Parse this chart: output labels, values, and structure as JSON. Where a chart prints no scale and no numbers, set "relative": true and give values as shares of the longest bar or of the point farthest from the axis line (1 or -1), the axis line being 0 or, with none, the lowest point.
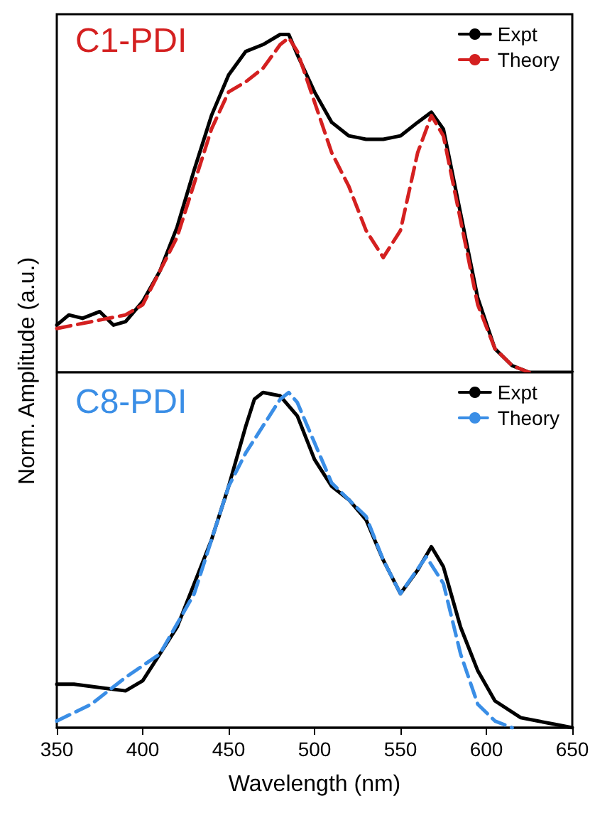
{
  "chart_data": [
    {
      "type": "line",
      "title": "C1-PDI",
      "ylabel": "Norm. Amplitude (a.u.)",
      "relative": true,
      "xlim": [
        350,
        650
      ],
      "xticks": [
        350,
        400,
        450,
        500,
        550,
        600,
        650
      ],
      "tick_labels": false,
      "legend": "top right",
      "grid": false,
      "marker": "none",
      "series": [
        {
          "name": "Expt",
          "color": "#000000",
          "line_style": "solid",
          "x": [
            350,
            357,
            365,
            375,
            383,
            390,
            400,
            410,
            420,
            430,
            440,
            450,
            460,
            470,
            480,
            485,
            490,
            500,
            510,
            520,
            530,
            540,
            550,
            560,
            568,
            575,
            585,
            595,
            605,
            615,
            625,
            650
          ],
          "values": [
            0.14,
            0.17,
            0.16,
            0.18,
            0.14,
            0.15,
            0.21,
            0.3,
            0.43,
            0.6,
            0.76,
            0.88,
            0.95,
            0.97,
            1.0,
            1.0,
            0.94,
            0.83,
            0.74,
            0.7,
            0.69,
            0.69,
            0.7,
            0.74,
            0.77,
            0.72,
            0.47,
            0.22,
            0.07,
            0.02,
            0,
            0
          ]
        },
        {
          "name": "Theory",
          "color": "#d42020",
          "line_style": "dashed",
          "x": [
            350,
            370,
            390,
            400,
            420,
            440,
            450,
            460,
            470,
            480,
            485,
            490,
            500,
            510,
            520,
            530,
            540,
            550,
            560,
            568,
            575,
            585,
            595,
            605,
            615,
            625
          ],
          "values": [
            0.13,
            0.15,
            0.17,
            0.2,
            0.4,
            0.72,
            0.83,
            0.86,
            0.9,
            0.97,
            0.99,
            0.95,
            0.8,
            0.65,
            0.55,
            0.42,
            0.34,
            0.42,
            0.65,
            0.76,
            0.7,
            0.45,
            0.2,
            0.07,
            0.02,
            0
          ]
        }
      ]
    },
    {
      "type": "line",
      "title": "C8-PDI",
      "xlabel": "Wavelength (nm)",
      "relative": true,
      "xlim": [
        350,
        650
      ],
      "xticks": [
        350,
        400,
        450,
        500,
        550,
        600,
        650
      ],
      "tick_labels": "x",
      "legend": "top right",
      "grid": false,
      "marker": "none",
      "series": [
        {
          "name": "Expt",
          "color": "#000000",
          "line_style": "solid",
          "x": [
            350,
            360,
            375,
            390,
            400,
            420,
            440,
            450,
            460,
            465,
            470,
            480,
            490,
            500,
            510,
            520,
            530,
            540,
            550,
            560,
            568,
            575,
            585,
            595,
            605,
            620,
            640,
            650
          ],
          "values": [
            0.13,
            0.13,
            0.12,
            0.11,
            0.14,
            0.3,
            0.56,
            0.72,
            0.9,
            0.98,
            1.0,
            0.99,
            0.93,
            0.8,
            0.72,
            0.68,
            0.62,
            0.5,
            0.4,
            0.47,
            0.54,
            0.48,
            0.3,
            0.17,
            0.08,
            0.03,
            0.01,
            0
          ]
        },
        {
          "name": "Theory",
          "color": "#3a8ee6",
          "line_style": "dashed",
          "x": [
            350,
            370,
            390,
            410,
            430,
            450,
            460,
            470,
            480,
            485,
            490,
            500,
            510,
            520,
            530,
            540,
            550,
            565,
            575,
            585,
            595,
            605,
            615
          ],
          "values": [
            0.02,
            0.07,
            0.15,
            0.22,
            0.4,
            0.72,
            0.82,
            0.9,
            0.98,
            1.0,
            0.97,
            0.85,
            0.73,
            0.68,
            0.63,
            0.5,
            0.4,
            0.51,
            0.43,
            0.22,
            0.07,
            0.02,
            0
          ]
        }
      ]
    }
  ]
}
